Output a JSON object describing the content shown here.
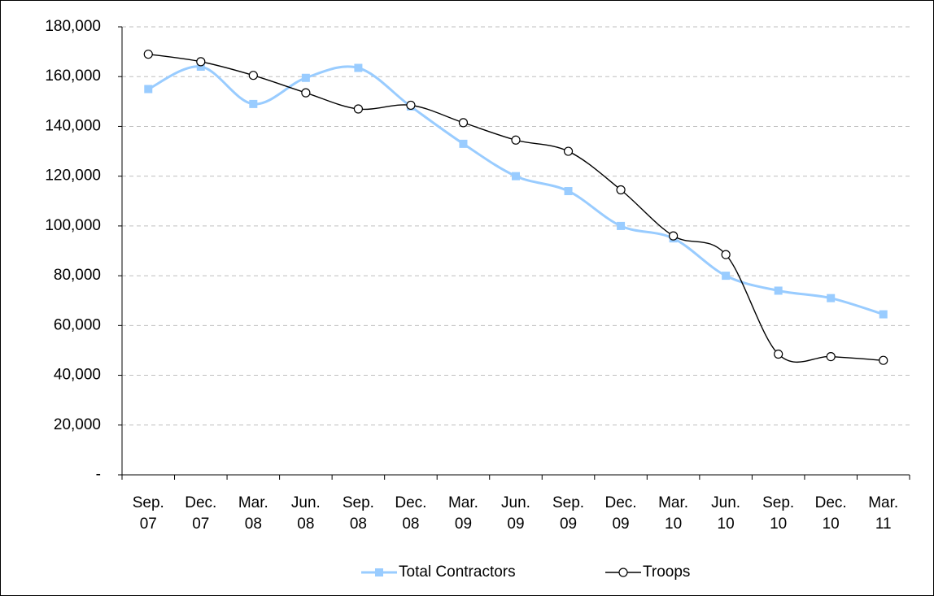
{
  "chart_data": {
    "type": "line",
    "categories": [
      "Sep. 07",
      "Dec. 07",
      "Mar. 08",
      "Jun. 08",
      "Sep. 08",
      "Dec. 08",
      "Mar. 09",
      "Jun. 09",
      "Sep. 09",
      "Dec. 09",
      "Mar. 10",
      "Jun. 10",
      "Sep. 10",
      "Dec. 10",
      "Mar. 11"
    ],
    "series": [
      {
        "name": "Total Contractors",
        "color": "#99ccff",
        "marker": "square",
        "values": [
          155000,
          164000,
          149000,
          159500,
          163500,
          148000,
          133000,
          120000,
          114000,
          100000,
          95000,
          80000,
          74000,
          71000,
          64500
        ]
      },
      {
        "name": "Troops",
        "color": "#000000",
        "marker": "circle",
        "values": [
          169000,
          166000,
          160500,
          153500,
          147000,
          148500,
          141500,
          134500,
          130000,
          114500,
          96000,
          88500,
          48500,
          47500,
          46000
        ]
      }
    ],
    "ylim": [
      0,
      180000
    ],
    "yticks": [
      {
        "value": 0,
        "label": "-"
      },
      {
        "value": 20000,
        "label": "20,000"
      },
      {
        "value": 40000,
        "label": "40,000"
      },
      {
        "value": 60000,
        "label": "60,000"
      },
      {
        "value": 80000,
        "label": "80,000"
      },
      {
        "value": 100000,
        "label": "100,000"
      },
      {
        "value": 120000,
        "label": "120,000"
      },
      {
        "value": 140000,
        "label": "140,000"
      },
      {
        "value": 160000,
        "label": "160,000"
      },
      {
        "value": 180000,
        "label": "180,000"
      }
    ],
    "grid": true,
    "smooth": true,
    "legend": "bottom"
  }
}
